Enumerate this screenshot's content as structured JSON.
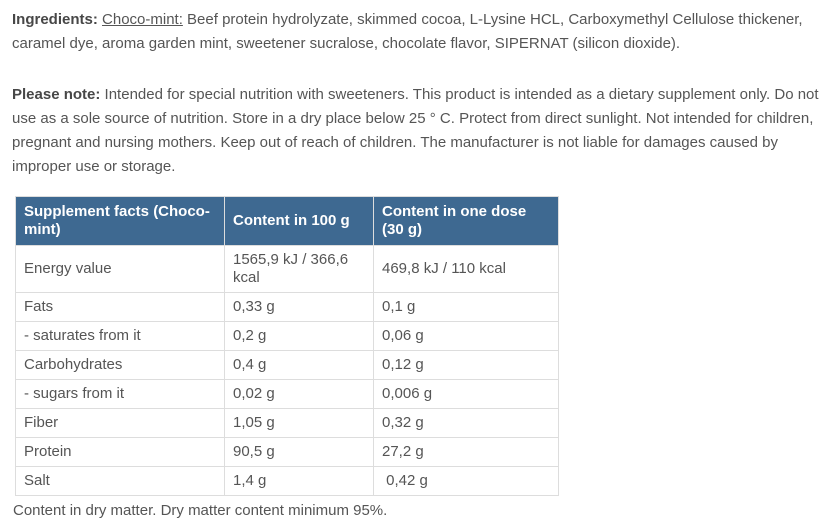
{
  "ingredients": {
    "label": "Ingredients:",
    "flavor": "Choco-mint:",
    "text": "Beef protein hydrolyzate, skimmed cocoa, L-Lysine HCL, Carboxymethyl Cellulose thickener, caramel dye, aroma garden mint, sweetener sucralose, chocolate flavor, SIPERNAT (silicon dioxide)."
  },
  "note": {
    "label": "Please note:",
    "text": "Intended for special nutrition with sweeteners. This product is intended as a dietary supplement only. Do not use as a sole source of nutrition. Store in a dry place below 25 ° C. Protect from direct sunlight. Not intended for children, pregnant and nursing mothers. Keep out of reach of children. The manufacturer is not liable for damages caused by improper use or storage."
  },
  "table": {
    "headers": [
      "Supplement facts (Choco-mint)",
      "Content in 100 g",
      "Content in one dose (30 g)"
    ],
    "rows": [
      {
        "name": "Energy value",
        "per_100g": "1565,9 kJ / 366,6 kcal",
        "per_dose": "469,8 kJ / 110 kcal"
      },
      {
        "name": "Fats",
        "per_100g": "0,33 g",
        "per_dose": "0,1 g"
      },
      {
        "name": "- saturates from it",
        "per_100g": "0,2 g",
        "per_dose": "0,06 g"
      },
      {
        "name": "Carbohydrates",
        "per_100g": "0,4 g",
        "per_dose": "0,12 g"
      },
      {
        "name": "- sugars from it",
        "per_100g": "0,02 g",
        "per_dose": "0,006 g"
      },
      {
        "name": "Fiber",
        "per_100g": "1,05 g",
        "per_dose": "0,32 g"
      },
      {
        "name": "Protein",
        "per_100g": "90,5 g",
        "per_dose": "27,2 g"
      },
      {
        "name": "Salt",
        "per_100g": "1,4 g",
        "per_dose": " 0,42 g"
      }
    ]
  },
  "footnote": "Content in dry matter. Dry matter content minimum 95%.",
  "colors": {
    "table_header_bg": "#3e6991",
    "table_header_text": "#ffffff",
    "text": "#555555",
    "table_border": "#dddddd"
  }
}
